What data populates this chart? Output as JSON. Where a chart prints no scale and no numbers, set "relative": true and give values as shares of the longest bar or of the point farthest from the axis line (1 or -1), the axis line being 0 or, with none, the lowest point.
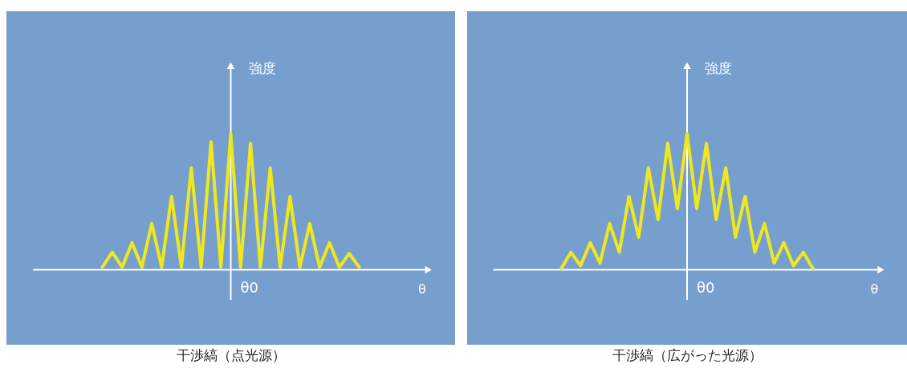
{
  "chart_data": [
    {
      "type": "line",
      "title": "干渉縞（点光源）",
      "xlabel": "θ",
      "ylabel": "強度",
      "annotations": [
        "θ0"
      ],
      "relative": true,
      "marker": "none",
      "line_style": "solid",
      "categories": [
        null,
        null,
        null,
        null,
        null,
        null,
        null,
        null,
        null,
        null,
        null,
        null,
        null,
        null,
        null,
        null,
        null,
        null,
        null,
        null,
        null,
        null,
        null,
        null,
        null,
        null,
        null
      ],
      "series": [
        {
          "color": "#f0e81e",
          "values": [
            0.02,
            0.13,
            0.02,
            0.2,
            0.02,
            0.34,
            0.02,
            0.54,
            0.02,
            0.75,
            0.02,
            0.94,
            0.02,
            1,
            0.02,
            0.93,
            0.02,
            0.75,
            0.02,
            0.54,
            0.02,
            0.34,
            0.02,
            0.2,
            0.02,
            0.12,
            0.02
          ]
        }
      ]
    },
    {
      "type": "line",
      "title": "干渉縞（広がった光源）",
      "xlabel": "θ",
      "ylabel": "強度",
      "annotations": [
        "θ0"
      ],
      "relative": true,
      "marker": "none",
      "line_style": "solid",
      "categories": [
        null,
        null,
        null,
        null,
        null,
        null,
        null,
        null,
        null,
        null,
        null,
        null,
        null,
        null,
        null,
        null,
        null,
        null,
        null,
        null,
        null,
        null,
        null,
        null,
        null,
        null,
        null
      ],
      "series": [
        {
          "color": "#f0e81e",
          "values": [
            0.01,
            0.13,
            0.03,
            0.2,
            0.05,
            0.34,
            0.13,
            0.54,
            0.24,
            0.75,
            0.37,
            0.93,
            0.45,
            1,
            0.45,
            0.93,
            0.37,
            0.75,
            0.24,
            0.54,
            0.13,
            0.34,
            0.05,
            0.2,
            0.03,
            0.13,
            0.01
          ]
        }
      ]
    }
  ]
}
